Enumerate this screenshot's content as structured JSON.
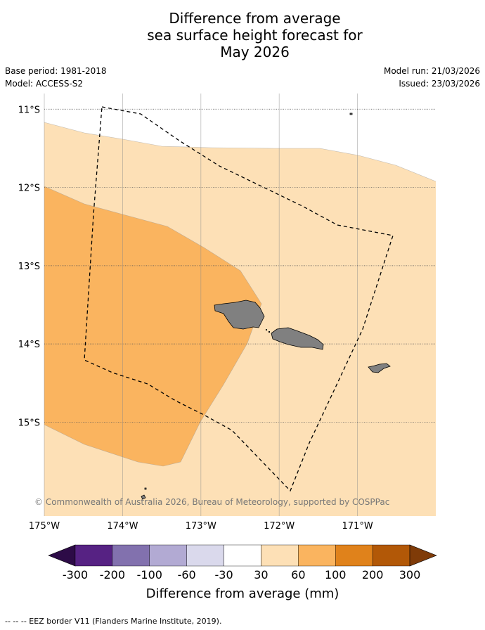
{
  "title": {
    "line1": "Difference from average",
    "line2": "sea surface height forecast for",
    "line3": "May 2026"
  },
  "meta": {
    "base_period": "Base period: 1981-2018",
    "model": "Model: ACCESS-S2",
    "model_run": "Model run: 21/03/2026",
    "issued": "Issued: 23/03/2026"
  },
  "map": {
    "lon_range": [
      -175,
      -170
    ],
    "lat_range": [
      -16.2,
      -10.8
    ],
    "lon_ticks": [
      {
        "value": -175,
        "label": "175°W"
      },
      {
        "value": -174,
        "label": "174°W"
      },
      {
        "value": -173,
        "label": "173°W"
      },
      {
        "value": -172,
        "label": "172°W"
      },
      {
        "value": -171,
        "label": "171°W"
      }
    ],
    "lat_ticks": [
      {
        "value": -11,
        "label": "11°S"
      },
      {
        "value": -12,
        "label": "12°S"
      },
      {
        "value": -13,
        "label": "13°S"
      },
      {
        "value": -14,
        "label": "14°S"
      },
      {
        "value": -15,
        "label": "15°S"
      }
    ],
    "ocean_color": "#fde0b6",
    "land_color": "#808080",
    "copyright": "© Commonwealth of Australia 2026, Bureau of Meteorology, supported by COSPPac"
  },
  "colorbar": {
    "colors": [
      "#2d0b47",
      "#562283",
      "#8271ae",
      "#b2aad3",
      "#dad9ec",
      "#ffffff",
      "#fde0b6",
      "#fab45f",
      "#e0821b",
      "#b25807",
      "#7f3b08"
    ],
    "labels": [
      "-300",
      "-200",
      "-100",
      "-60",
      "-30",
      "30",
      "60",
      "100",
      "200",
      "300"
    ],
    "title": "Difference from average (mm)"
  },
  "footnote": "--  --  -- EEZ border V11 (Flanders Marine Institute, 2019)."
}
